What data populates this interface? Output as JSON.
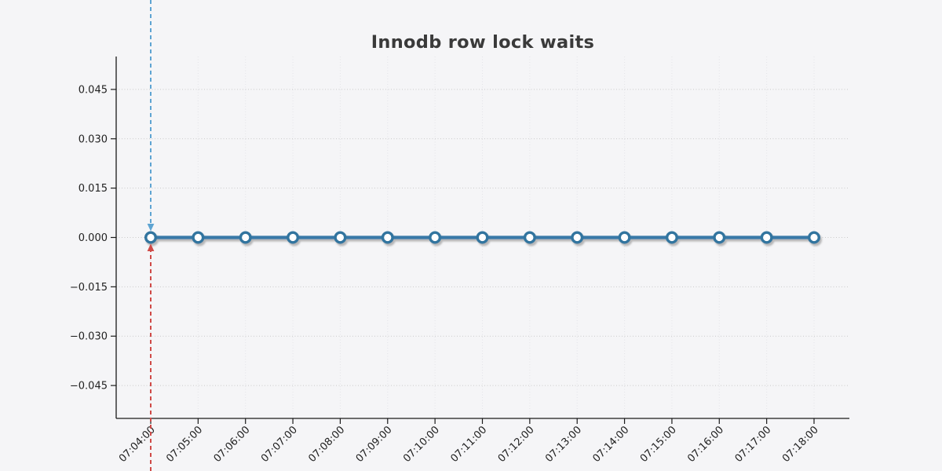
{
  "title": "Innodb row lock waits",
  "colors": {
    "background": "#f5f5f7",
    "title": "#3a3a3a",
    "axis": "#1a1a1a",
    "tick_label": "#222222",
    "grid_horizontal": "#c9c9c9",
    "grid_vertical": "#e4e4e8",
    "line": "#3879a8",
    "marker_fill": "#ffffff",
    "marker_edge": "#33749f",
    "arrow_down": "#5ea4d2",
    "arrow_up": "#cf4a47",
    "shadow": "#777777"
  },
  "chart_data": {
    "type": "line",
    "title": "Innodb row lock waits",
    "x": [
      "07:04:00",
      "07:05:00",
      "07:06:00",
      "07:07:00",
      "07:08:00",
      "07:09:00",
      "07:10:00",
      "07:11:00",
      "07:12:00",
      "07:13:00",
      "07:14:00",
      "07:15:00",
      "07:16:00",
      "07:17:00",
      "07:18:00"
    ],
    "values": [
      0,
      0,
      0,
      0,
      0,
      0,
      0,
      0,
      0,
      0,
      0,
      0,
      0,
      0,
      0
    ],
    "xlabel": "",
    "ylabel": "",
    "ylim": [
      -0.055,
      0.055
    ],
    "yticks": [
      0.045,
      0.03,
      0.015,
      0.0,
      -0.015,
      -0.03,
      -0.045
    ],
    "ytick_labels": [
      "0.045",
      "0.030",
      "0.015",
      "0.000",
      "−0.015",
      "−0.030",
      "−0.045"
    ],
    "grid": true,
    "legend": false,
    "marker_shape": "circle",
    "annotations": [
      {
        "name": "arrow-down",
        "x": "07:04:00",
        "direction": "down",
        "style": "dashed",
        "color": "#5ea4d2",
        "extends_to": "top-edge"
      },
      {
        "name": "arrow-up",
        "x": "07:04:00",
        "direction": "up",
        "style": "dashed",
        "color": "#cf4a47",
        "extends_to": "bottom-edge"
      }
    ]
  }
}
